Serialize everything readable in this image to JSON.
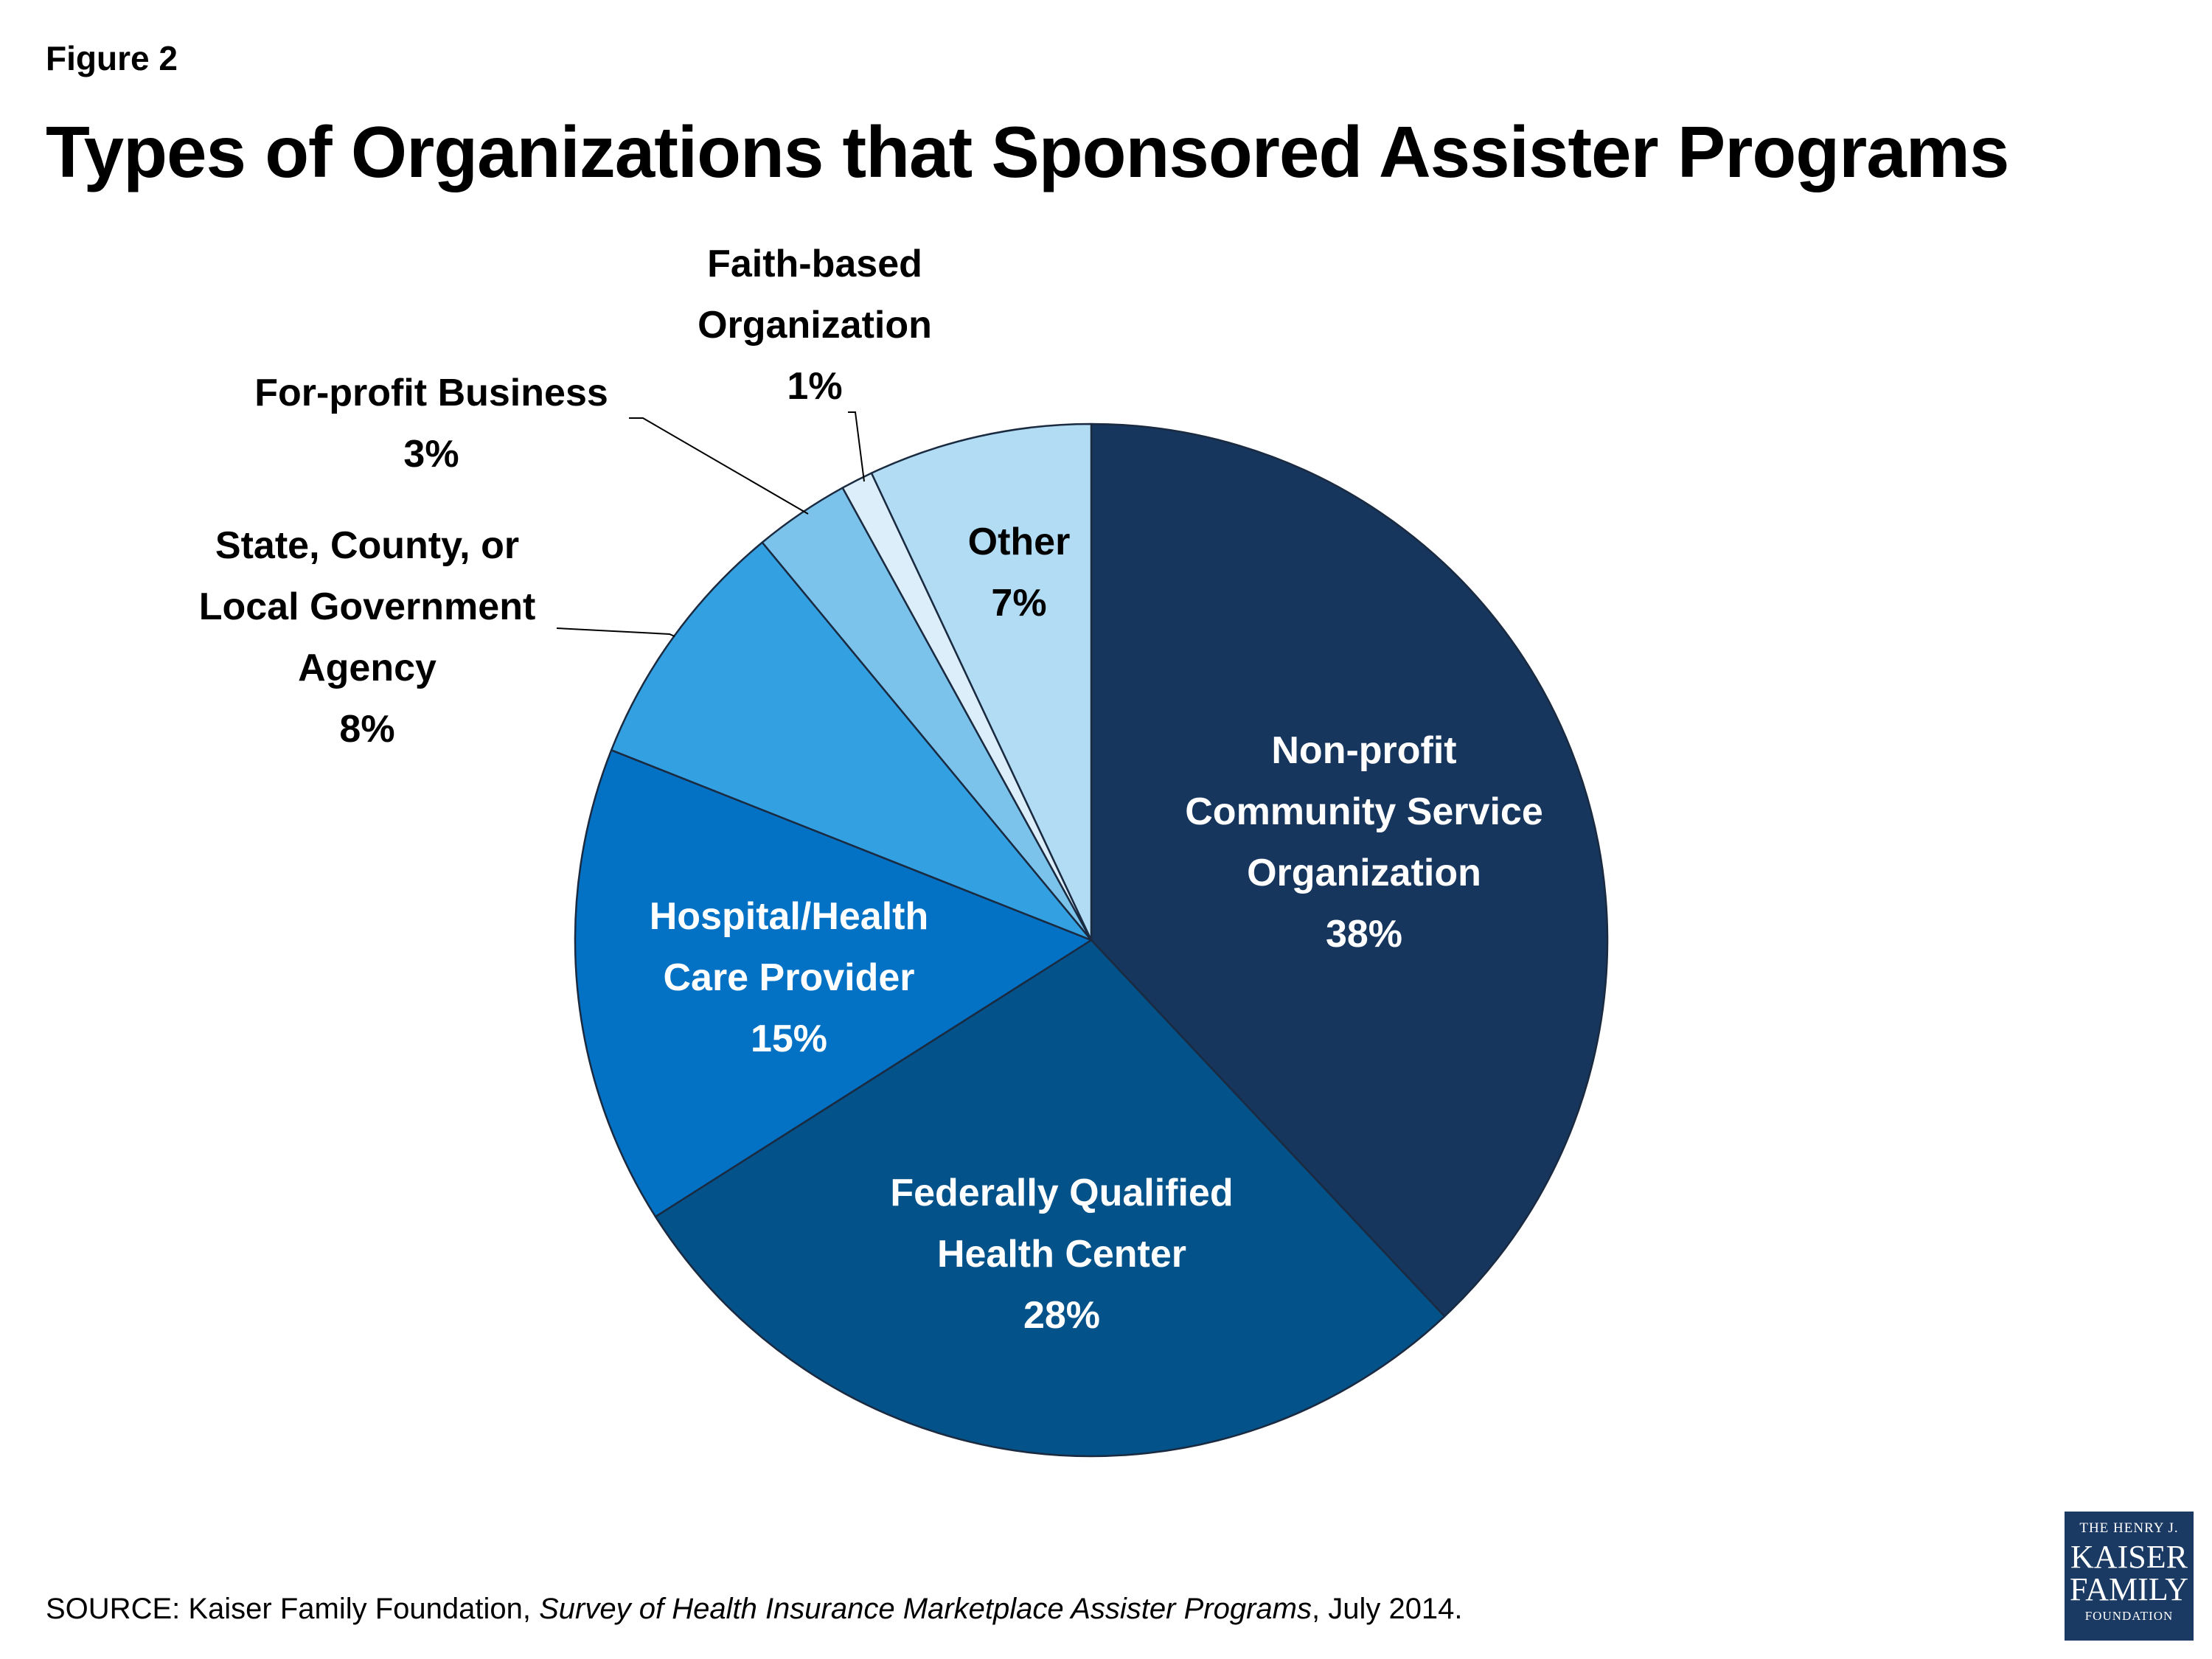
{
  "figure_label": "Figure 2",
  "title": "Types of Organizations that Sponsored Assister Programs",
  "source": {
    "prefix": "SOURCE: Kaiser Family Foundation, ",
    "italic": "Survey of Health Insurance Marketplace Assister Programs",
    "suffix": ", July 2014."
  },
  "logo": {
    "line1": "THE HENRY J.",
    "line2": "KAISER",
    "line3": "FAMILY",
    "line4": "FOUNDATION"
  },
  "chart_data": {
    "type": "pie",
    "title": "Types of Organizations that Sponsored Assister Programs",
    "start": "12 o'clock",
    "direction": "clockwise",
    "slices": [
      {
        "name": "Non-profit Community Service Organization",
        "label_lines": [
          "Non-profit",
          "Community Service",
          "Organization"
        ],
        "value": 38,
        "value_label": "38%",
        "color": "#17365d",
        "label_placement": "inside",
        "text_color": "#ffffff"
      },
      {
        "name": "Federally Qualified Health Center",
        "label_lines": [
          "Federally Qualified",
          "Health Center"
        ],
        "value": 28,
        "value_label": "28%",
        "color": "#03528a",
        "label_placement": "inside",
        "text_color": "#ffffff"
      },
      {
        "name": "Hospital/Health Care Provider",
        "label_lines": [
          "Hospital/Health",
          "Care Provider"
        ],
        "value": 15,
        "value_label": "15%",
        "color": "#0372c4",
        "label_placement": "inside",
        "text_color": "#ffffff"
      },
      {
        "name": "State, County, or Local Government Agency",
        "label_lines": [
          "State, County, or",
          "Local Government",
          "Agency"
        ],
        "value": 8,
        "value_label": "8%",
        "color": "#33a1e1",
        "label_placement": "outside",
        "text_color": "#000000"
      },
      {
        "name": "For-profit Business",
        "label_lines": [
          "For-profit Business"
        ],
        "value": 3,
        "value_label": "3%",
        "color": "#7cc3ec",
        "label_placement": "outside",
        "text_color": "#000000"
      },
      {
        "name": "Faith-based Organization",
        "label_lines": [
          "Faith-based",
          "Organization"
        ],
        "value": 1,
        "value_label": "1%",
        "color": "#dbeef9",
        "label_placement": "outside",
        "text_color": "#000000"
      },
      {
        "name": "Other",
        "label_lines": [
          "Other"
        ],
        "value": 7,
        "value_label": "7%",
        "color": "#b1dcf3",
        "label_placement": "inside",
        "text_color": "#000000"
      }
    ]
  }
}
